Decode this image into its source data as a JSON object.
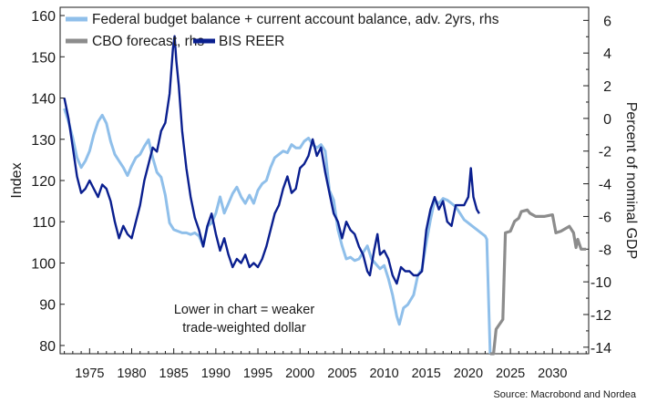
{
  "chart_data": {
    "type": "line",
    "ylabel": "Index",
    "y2label": "Percent of nominal GDP",
    "ylim": [
      78,
      162
    ],
    "y2lim": [
      -14.4,
      6.8
    ],
    "xlim": [
      1971.5,
      2034.3
    ],
    "yticks": [
      80,
      90,
      100,
      110,
      120,
      130,
      140,
      150,
      160
    ],
    "y2ticks": [
      6,
      4,
      2,
      0,
      -2,
      -4,
      -6,
      -8,
      -10,
      -12,
      -14
    ],
    "xticks": [
      1975,
      1980,
      1985,
      1990,
      1995,
      2000,
      2005,
      2010,
      2015,
      2020,
      2025,
      2030
    ],
    "legend": [
      "Federal budget balance + current account balance, adv. 2yrs, rhs",
      "CBO forecast, rhs",
      "BIS REER"
    ],
    "legend_position": "top-left",
    "annotation": [
      "Lower in chart = weaker",
      "trade-weighted dollar"
    ],
    "source": "Source: Macrobond and Nordea",
    "colors": {
      "balance": "#8fbfea",
      "cbo": "#8c8c8c",
      "reer": "#0a1f8f"
    },
    "series": [
      {
        "name": "Federal budget balance + current account balance, adv. 2yrs, rhs",
        "axis": "right",
        "color": "#8fbfea",
        "points": [
          [
            1972.0,
            0.6
          ],
          [
            1972.5,
            -0.2
          ],
          [
            1973.0,
            -1.2
          ],
          [
            1973.5,
            -2.4
          ],
          [
            1974.0,
            -3.0
          ],
          [
            1974.5,
            -2.6
          ],
          [
            1975.0,
            -2.0
          ],
          [
            1975.5,
            -1.0
          ],
          [
            1976.0,
            -0.2
          ],
          [
            1976.5,
            0.2
          ],
          [
            1977.0,
            -0.3
          ],
          [
            1977.5,
            -1.4
          ],
          [
            1978.0,
            -2.2
          ],
          [
            1978.5,
            -2.6
          ],
          [
            1979.0,
            -3.0
          ],
          [
            1979.5,
            -3.5
          ],
          [
            1980.0,
            -2.9
          ],
          [
            1980.5,
            -2.4
          ],
          [
            1981.0,
            -2.2
          ],
          [
            1981.5,
            -1.7
          ],
          [
            1982.0,
            -1.3
          ],
          [
            1982.5,
            -2.4
          ],
          [
            1983.0,
            -3.3
          ],
          [
            1983.5,
            -3.6
          ],
          [
            1984.0,
            -4.7
          ],
          [
            1984.5,
            -6.4
          ],
          [
            1985.0,
            -6.8
          ],
          [
            1985.5,
            -6.9
          ],
          [
            1986.0,
            -7.0
          ],
          [
            1986.5,
            -7.0
          ],
          [
            1987.0,
            -7.1
          ],
          [
            1987.5,
            -7.0
          ],
          [
            1988.0,
            -7.2
          ],
          [
            1988.5,
            -7.8
          ],
          [
            1989.0,
            -6.6
          ],
          [
            1989.5,
            -6.4
          ],
          [
            1990.0,
            -5.8
          ],
          [
            1990.5,
            -4.8
          ],
          [
            1991.0,
            -5.8
          ],
          [
            1991.5,
            -5.2
          ],
          [
            1992.0,
            -4.6
          ],
          [
            1992.5,
            -4.2
          ],
          [
            1993.0,
            -4.8
          ],
          [
            1993.5,
            -5.2
          ],
          [
            1994.0,
            -4.7
          ],
          [
            1994.5,
            -5.2
          ],
          [
            1995.0,
            -4.4
          ],
          [
            1995.5,
            -4.0
          ],
          [
            1996.0,
            -3.8
          ],
          [
            1996.5,
            -3.0
          ],
          [
            1997.0,
            -2.4
          ],
          [
            1997.5,
            -2.2
          ],
          [
            1998.0,
            -2.0
          ],
          [
            1998.5,
            -2.1
          ],
          [
            1999.0,
            -1.6
          ],
          [
            1999.5,
            -1.8
          ],
          [
            2000.0,
            -1.8
          ],
          [
            2000.5,
            -1.4
          ],
          [
            2001.0,
            -1.2
          ],
          [
            2001.5,
            -1.6
          ],
          [
            2002.0,
            -1.8
          ],
          [
            2002.5,
            -1.6
          ],
          [
            2003.0,
            -2.0
          ],
          [
            2003.5,
            -4.4
          ],
          [
            2004.0,
            -5.0
          ],
          [
            2004.5,
            -6.8
          ],
          [
            2005.0,
            -7.8
          ],
          [
            2005.5,
            -8.6
          ],
          [
            2006.0,
            -8.5
          ],
          [
            2006.5,
            -8.7
          ],
          [
            2007.0,
            -8.6
          ],
          [
            2007.5,
            -8.2
          ],
          [
            2008.0,
            -7.8
          ],
          [
            2008.5,
            -8.6
          ],
          [
            2009.0,
            -8.9
          ],
          [
            2009.5,
            -9.2
          ],
          [
            2010.0,
            -9.0
          ],
          [
            2010.5,
            -9.8
          ],
          [
            2011.0,
            -10.8
          ],
          [
            2011.5,
            -12.1
          ],
          [
            2011.8,
            -12.6
          ],
          [
            2012.3,
            -11.6
          ],
          [
            2012.8,
            -11.4
          ],
          [
            2013.5,
            -10.8
          ],
          [
            2014.0,
            -9.6
          ],
          [
            2014.5,
            -9.2
          ],
          [
            2015.0,
            -7.6
          ],
          [
            2015.5,
            -6.2
          ],
          [
            2016.0,
            -5.0
          ],
          [
            2016.5,
            -5.2
          ],
          [
            2017.0,
            -4.9
          ],
          [
            2017.5,
            -5.0
          ],
          [
            2018.0,
            -5.2
          ],
          [
            2018.5,
            -5.4
          ],
          [
            2019.0,
            -5.8
          ],
          [
            2019.5,
            -6.2
          ],
          [
            2020.0,
            -6.4
          ],
          [
            2020.5,
            -6.6
          ],
          [
            2021.0,
            -6.8
          ],
          [
            2021.5,
            -7.0
          ],
          [
            2022.0,
            -7.2
          ],
          [
            2022.2,
            -7.4
          ],
          [
            2022.6,
            -14.4
          ]
        ]
      },
      {
        "name": "CBO forecast, rhs",
        "axis": "right",
        "color": "#8c8c8c",
        "points": [
          [
            2022.6,
            -14.4
          ],
          [
            2023.0,
            -14.4
          ],
          [
            2023.3,
            -12.9
          ],
          [
            2024.1,
            -12.3
          ],
          [
            2024.4,
            -7.0
          ],
          [
            2025.0,
            -6.9
          ],
          [
            2025.5,
            -6.3
          ],
          [
            2026.0,
            -6.1
          ],
          [
            2026.3,
            -5.7
          ],
          [
            2027.0,
            -5.6
          ],
          [
            2027.3,
            -5.8
          ],
          [
            2028.0,
            -6.0
          ],
          [
            2029.0,
            -6.0
          ],
          [
            2030.0,
            -5.9
          ],
          [
            2030.4,
            -7.0
          ],
          [
            2031.0,
            -6.9
          ],
          [
            2032.0,
            -6.6
          ],
          [
            2032.5,
            -7.0
          ],
          [
            2032.8,
            -7.9
          ],
          [
            2033.0,
            -7.4
          ],
          [
            2033.4,
            -8.0
          ],
          [
            2034.0,
            -8.0
          ]
        ]
      },
      {
        "name": "BIS REER",
        "axis": "left",
        "color": "#0a1f8f",
        "points": [
          [
            1972.0,
            140.0
          ],
          [
            1972.5,
            135.0
          ],
          [
            1973.0,
            128.0
          ],
          [
            1973.5,
            121.0
          ],
          [
            1974.0,
            117.0
          ],
          [
            1974.5,
            118.0
          ],
          [
            1975.0,
            120.0
          ],
          [
            1975.5,
            118.0
          ],
          [
            1976.0,
            116.0
          ],
          [
            1976.5,
            119.0
          ],
          [
            1977.0,
            118.0
          ],
          [
            1977.5,
            115.0
          ],
          [
            1978.0,
            110.0
          ],
          [
            1978.5,
            106.0
          ],
          [
            1979.0,
            109.0
          ],
          [
            1979.5,
            107.0
          ],
          [
            1980.0,
            106.0
          ],
          [
            1980.5,
            110.0
          ],
          [
            1981.0,
            114.0
          ],
          [
            1981.5,
            120.0
          ],
          [
            1982.0,
            124.0
          ],
          [
            1982.5,
            128.0
          ],
          [
            1983.0,
            127.0
          ],
          [
            1983.5,
            132.0
          ],
          [
            1984.0,
            134.0
          ],
          [
            1984.5,
            141.0
          ],
          [
            1984.9,
            152.0
          ],
          [
            1985.1,
            155.0
          ],
          [
            1985.3,
            149.0
          ],
          [
            1985.6,
            143.0
          ],
          [
            1986.0,
            132.0
          ],
          [
            1986.5,
            123.0
          ],
          [
            1987.0,
            116.0
          ],
          [
            1987.5,
            111.0
          ],
          [
            1988.0,
            108.0
          ],
          [
            1988.5,
            104.0
          ],
          [
            1989.0,
            109.0
          ],
          [
            1989.5,
            112.0
          ],
          [
            1990.0,
            107.0
          ],
          [
            1990.5,
            103.0
          ],
          [
            1991.0,
            106.0
          ],
          [
            1991.5,
            102.0
          ],
          [
            1992.0,
            99.0
          ],
          [
            1992.5,
            101.0
          ],
          [
            1993.0,
            100.0
          ],
          [
            1993.5,
            102.0
          ],
          [
            1994.0,
            99.0
          ],
          [
            1994.5,
            100.0
          ],
          [
            1995.0,
            99.0
          ],
          [
            1995.5,
            101.0
          ],
          [
            1996.0,
            104.0
          ],
          [
            1996.5,
            108.0
          ],
          [
            1997.0,
            112.0
          ],
          [
            1997.5,
            114.0
          ],
          [
            1998.0,
            118.0
          ],
          [
            1998.5,
            121.0
          ],
          [
            1999.0,
            117.0
          ],
          [
            1999.5,
            118.0
          ],
          [
            2000.0,
            123.0
          ],
          [
            2000.5,
            124.0
          ],
          [
            2001.0,
            126.0
          ],
          [
            2001.5,
            130.0
          ],
          [
            2002.0,
            126.0
          ],
          [
            2002.5,
            128.0
          ],
          [
            2003.0,
            122.0
          ],
          [
            2003.5,
            117.0
          ],
          [
            2004.0,
            112.0
          ],
          [
            2004.5,
            110.0
          ],
          [
            2005.0,
            106.0
          ],
          [
            2005.5,
            110.0
          ],
          [
            2006.0,
            108.0
          ],
          [
            2006.5,
            107.0
          ],
          [
            2007.0,
            104.0
          ],
          [
            2007.5,
            102.0
          ],
          [
            2008.0,
            98.0
          ],
          [
            2008.3,
            97.0
          ],
          [
            2008.8,
            103.0
          ],
          [
            2009.2,
            107.0
          ],
          [
            2009.5,
            102.0
          ],
          [
            2010.0,
            103.0
          ],
          [
            2010.5,
            101.0
          ],
          [
            2011.0,
            97.0
          ],
          [
            2011.5,
            95.0
          ],
          [
            2012.0,
            99.0
          ],
          [
            2012.5,
            98.0
          ],
          [
            2013.0,
            98.0
          ],
          [
            2013.5,
            97.0
          ],
          [
            2014.0,
            97.0
          ],
          [
            2014.5,
            98.0
          ],
          [
            2015.0,
            108.0
          ],
          [
            2015.5,
            113.0
          ],
          [
            2016.0,
            116.0
          ],
          [
            2016.5,
            113.0
          ],
          [
            2017.0,
            115.0
          ],
          [
            2017.5,
            110.0
          ],
          [
            2018.0,
            109.0
          ],
          [
            2018.5,
            114.0
          ],
          [
            2019.0,
            114.0
          ],
          [
            2019.5,
            114.0
          ],
          [
            2020.0,
            116.0
          ],
          [
            2020.3,
            123.0
          ],
          [
            2020.6,
            116.0
          ],
          [
            2021.0,
            113.0
          ],
          [
            2021.3,
            112.0
          ]
        ]
      }
    ]
  }
}
